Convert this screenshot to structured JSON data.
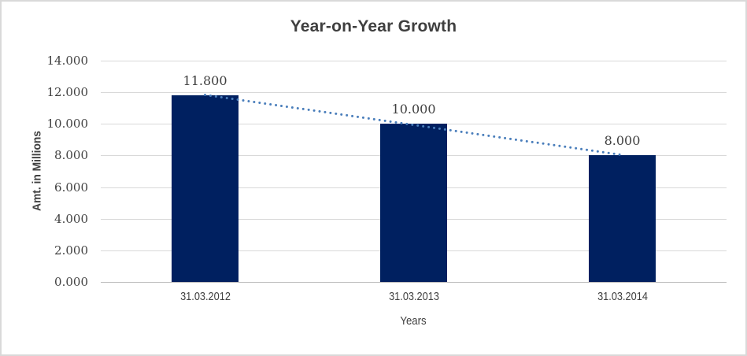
{
  "colors": {
    "background": "#ffffff",
    "frame_border": "#d9d9d9",
    "gridline": "#d9d9d9",
    "axis_line": "#bfbfbf",
    "text": "#404040",
    "bar": "#002060",
    "trendline": "#4a7ebb"
  },
  "chart_data": {
    "type": "bar",
    "title": "Year-on-Year Growth",
    "xlabel": "Years",
    "ylabel": "Amt. in Millions",
    "categories": [
      "31.03.2012",
      "31.03.2013",
      "31.03.2014"
    ],
    "values": [
      11.8,
      10.0,
      8.0
    ],
    "value_labels": [
      "11.800",
      "10.000",
      "8.000"
    ],
    "ylim": [
      0,
      14
    ],
    "yticks": [
      0,
      2,
      4,
      6,
      8,
      10,
      12,
      14
    ],
    "ytick_labels": [
      "0.000",
      "2.000",
      "4.000",
      "6.000",
      "8.000",
      "10.000",
      "12.000",
      "14.000"
    ],
    "grid": true,
    "legend_position": "none",
    "trendline": {
      "type": "linear",
      "style": "dotted",
      "color": "#4a7ebb"
    }
  }
}
